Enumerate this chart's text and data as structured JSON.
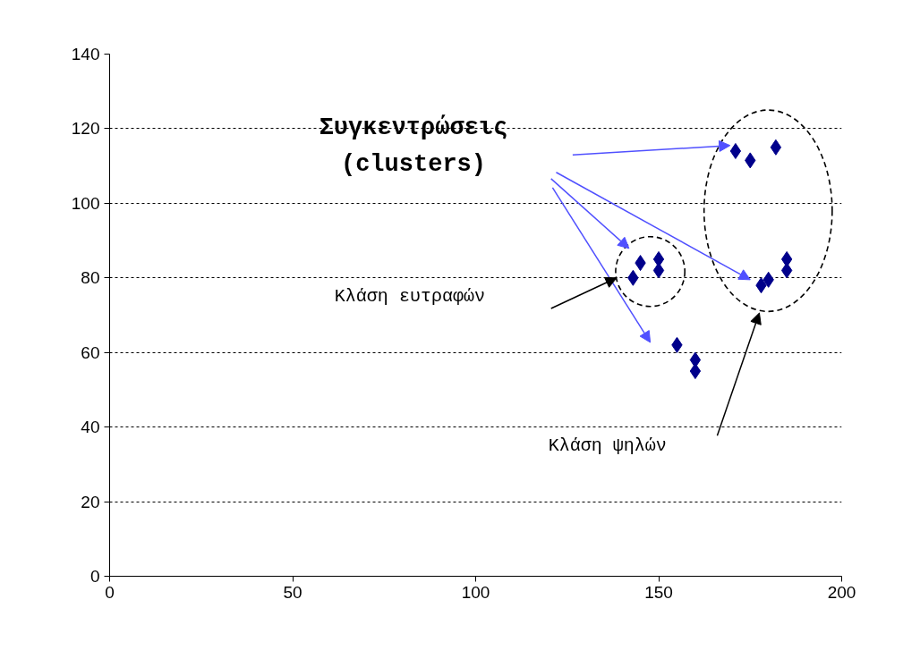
{
  "chart_data": {
    "type": "scatter",
    "marker": "diamond",
    "grid": "y",
    "xlim": [
      0,
      200
    ],
    "xticks": [
      0,
      50,
      100,
      150,
      200
    ],
    "ylim": [
      0,
      140
    ],
    "yticks": [
      0,
      20,
      40,
      60,
      80,
      100,
      120,
      140
    ],
    "x": [
      171,
      175,
      182,
      145,
      143,
      150,
      150,
      178,
      180,
      185,
      185,
      155,
      160,
      160
    ],
    "series": [
      {
        "color": "#00008b",
        "values": [
          114,
          111.5,
          115,
          84,
          80,
          85,
          82,
          78,
          79.5,
          85,
          82,
          62,
          58,
          55
        ]
      }
    ],
    "annotations": [
      "Συγκεντρώσεις",
      "(clusters)",
      "Κλάση ευτραφών",
      "Κλάση ψηλών"
    ]
  }
}
